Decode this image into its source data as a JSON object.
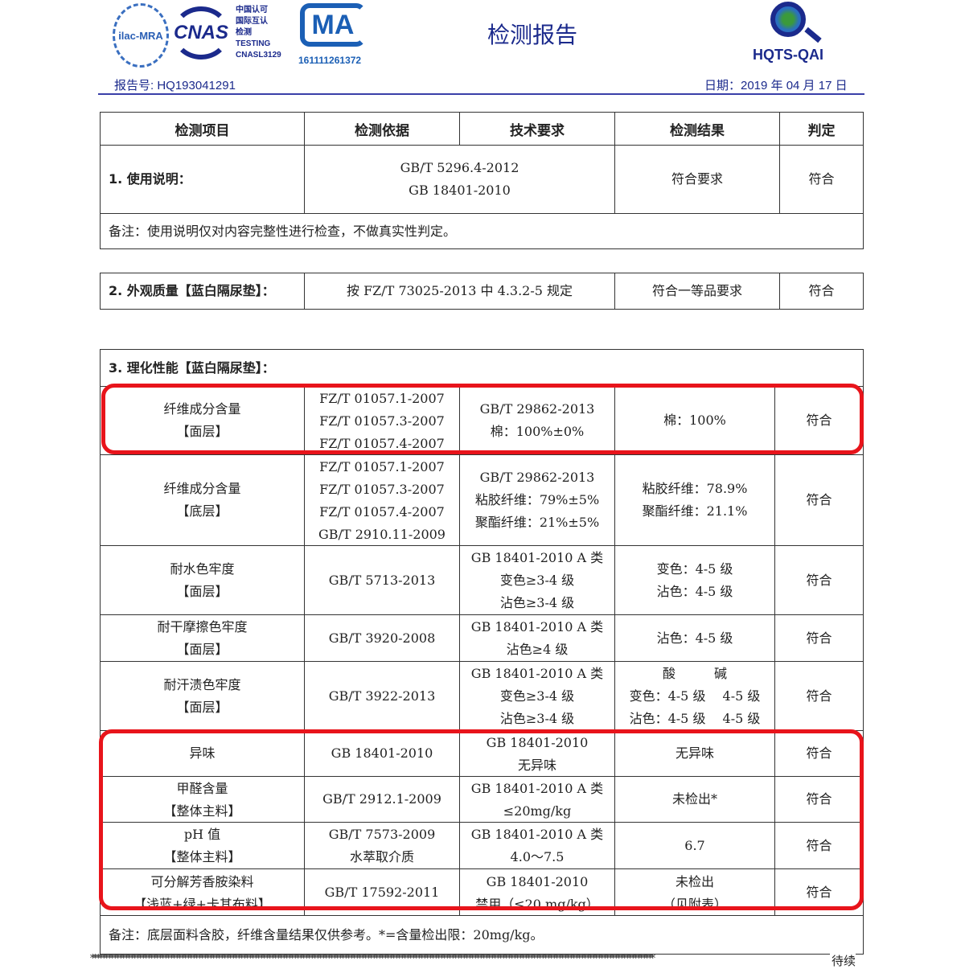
{
  "header": {
    "logos": {
      "ilac": "ilac-MRA",
      "cnas": "CNAS",
      "cnas_text": "中国认可\n国际互认\n检测\nTESTING\nCNASL3129",
      "cma": "MA",
      "cma_number": "161111261372",
      "hqts": "HQTS-QAI"
    },
    "title": "检测报告",
    "report_no": "报告号: HQ193041291",
    "date": "日期：2019 年 04 月 17 日",
    "accent": "#1b2a8c"
  },
  "columns": [
    "检测项目",
    "检测依据",
    "技术要求",
    "检测结果",
    "判定"
  ],
  "section1": {
    "item": "1.  使用说明：",
    "method": "GB/T 5296.4-2012\nGB 18401-2010",
    "result": "符合要求",
    "verdict": "符合",
    "note": "备注：使用说明仅对内容完整性进行检查，不做真实性判定。"
  },
  "section2": {
    "item": "2.  外观质量【蓝白隔尿垫】：",
    "method": "按 FZ/T 73025-2013 中 4.3.2-5 规定",
    "result": "符合一等品要求",
    "verdict": "符合"
  },
  "section3": {
    "title": "3.  理化性能【蓝白隔尿垫】：",
    "rows": [
      {
        "item": "纤维成分含量\n【面层】",
        "method": "FZ/T 01057.1-2007\nFZ/T 01057.3-2007\nFZ/T 01057.4-2007",
        "req": "GB/T 29862-2013\n棉：100%±0%",
        "result": "棉：100%",
        "verdict": "符合"
      },
      {
        "item": "纤维成分含量\n【底层】",
        "method": "FZ/T 01057.1-2007\nFZ/T 01057.3-2007\nFZ/T 01057.4-2007\nGB/T 2910.11-2009",
        "req": "GB/T 29862-2013\n粘胶纤维：79%±5%\n聚酯纤维：21%±5%",
        "result": "粘胶纤维：78.9%\n聚酯纤维：21.1%",
        "verdict": "符合"
      },
      {
        "item": "耐水色牢度\n【面层】",
        "method": "GB/T 5713-2013",
        "req": "GB 18401-2010 A 类\n变色≥3-4 级\n沾色≥3-4 级",
        "result": "变色：4-5 级\n沾色：4-5 级",
        "verdict": "符合"
      },
      {
        "item": "耐干摩擦色牢度\n【面层】",
        "method": "GB/T 3920-2008",
        "req": "GB 18401-2010 A 类\n沾色≥4 级",
        "result": "沾色：4-5 级",
        "verdict": "符合"
      },
      {
        "item": "耐汗渍色牢度\n【面层】",
        "method": "GB/T 3922-2013",
        "req": "GB 18401-2010 A 类\n变色≥3-4 级\n沾色≥3-4 级",
        "result": "酸　　　碱\n变色：4-5 级　 4-5 级\n沾色：4-5 级　 4-5 级",
        "verdict": "符合"
      },
      {
        "item": "异味",
        "method": "GB 18401-2010",
        "req": "GB 18401-2010\n无异味",
        "result": "无异味",
        "verdict": "符合"
      },
      {
        "item": "甲醛含量\n【整体主料】",
        "method": "GB/T 2912.1-2009",
        "req": "GB 18401-2010 A 类\n≤20mg/kg",
        "result": "未检出*",
        "verdict": "符合"
      },
      {
        "item": "pH 值\n【整体主料】",
        "method": "GB/T 7573-2009\n水萃取介质",
        "req": "GB 18401-2010 A 类\n4.0～7.5",
        "result": "6.7",
        "verdict": "符合"
      },
      {
        "item": "可分解芳香胺染料\n【浅蓝+绿+卡其布料】",
        "method": "GB/T 17592-2011",
        "req": "GB 18401-2010\n禁用（≤20 mg/kg）",
        "result": "未检出\n（见附表）",
        "verdict": "符合"
      }
    ],
    "note": "备注：底层面料含胶，纤维含量结果仅供参考。*=含量检出限：20mg/kg。"
  },
  "footer": {
    "continued": "待续"
  },
  "highlight_color": "#e8141b"
}
